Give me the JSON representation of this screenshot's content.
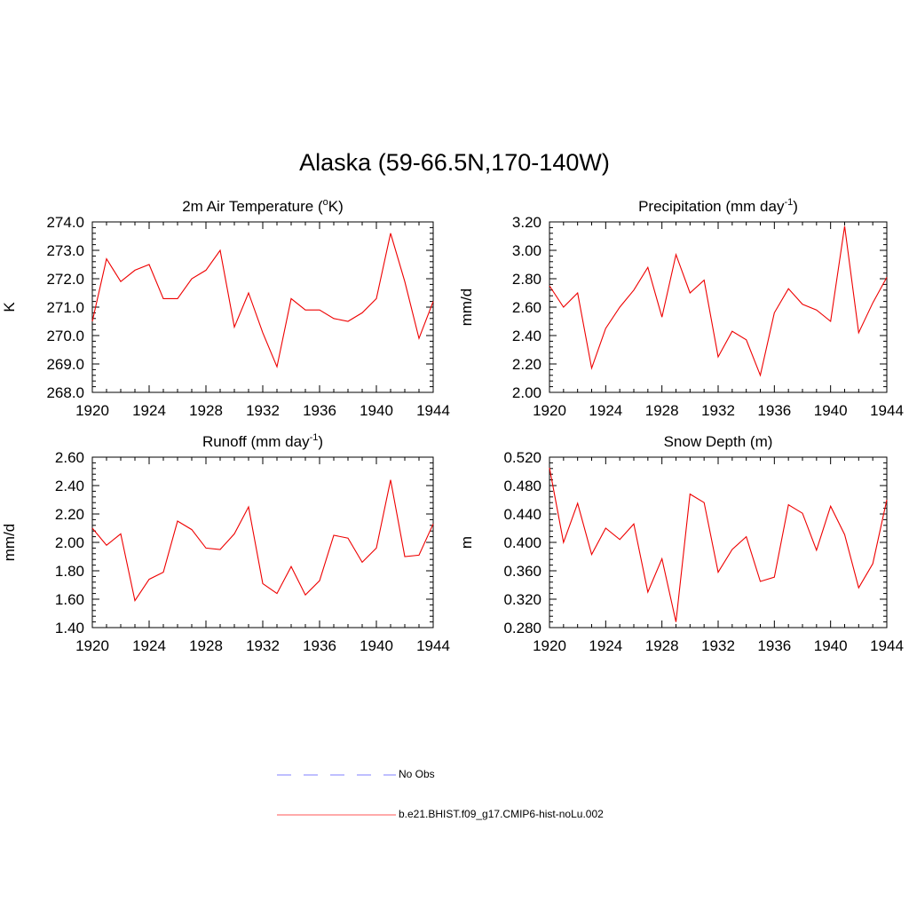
{
  "title": "Alaska (59-66.5N,170-140W)",
  "colors": {
    "model_line": "#ee0000",
    "obs_line": "#9999ff",
    "axis": "#000000"
  },
  "legend": [
    {
      "label": "No Obs",
      "style": "dashed",
      "color": "#9999ff"
    },
    {
      "label": "b.e21.BHIST.f09_g17.CMIP6-hist-noLu.002",
      "style": "solid",
      "color": "#ee0000"
    }
  ],
  "chart_data": [
    {
      "type": "line",
      "title": "2m Air Temperature (",
      "title_sup": "o",
      "title_tail": "K)",
      "ylabel": "K",
      "xlim": [
        1920,
        1944
      ],
      "ylim": [
        268.0,
        274.0
      ],
      "xticks": [
        1920,
        1924,
        1928,
        1932,
        1936,
        1940,
        1944
      ],
      "yticks": [
        "268.0",
        "269.0",
        "270.0",
        "271.0",
        "272.0",
        "273.0",
        "274.0"
      ],
      "series": [
        {
          "x": [
            1920,
            1921,
            1922,
            1923,
            1924,
            1925,
            1926,
            1927,
            1928,
            1929,
            1930,
            1931,
            1932,
            1933,
            1934,
            1935,
            1936,
            1937,
            1938,
            1939,
            1940,
            1941,
            1942,
            1943,
            1944
          ],
          "values": [
            270.5,
            272.7,
            271.9,
            272.3,
            272.5,
            271.3,
            271.3,
            272.0,
            272.3,
            273.0,
            270.3,
            271.5,
            270.1,
            268.9,
            271.3,
            270.9,
            270.9,
            270.6,
            270.5,
            270.8,
            271.3,
            273.6,
            271.9,
            269.9,
            271.2
          ]
        }
      ]
    },
    {
      "type": "line",
      "title": "Precipitation (mm day",
      "title_sup": "-1",
      "title_tail": ")",
      "ylabel": "mm/d",
      "xlim": [
        1920,
        1944
      ],
      "ylim": [
        2.0,
        3.2
      ],
      "xticks": [
        1920,
        1924,
        1928,
        1932,
        1936,
        1940,
        1944
      ],
      "yticks": [
        "2.00",
        "2.20",
        "2.40",
        "2.60",
        "2.80",
        "3.00",
        "3.20"
      ],
      "series": [
        {
          "x": [
            1920,
            1921,
            1922,
            1923,
            1924,
            1925,
            1926,
            1927,
            1928,
            1929,
            1930,
            1931,
            1932,
            1933,
            1934,
            1935,
            1936,
            1937,
            1938,
            1939,
            1940,
            1941,
            1942,
            1943,
            1944
          ],
          "values": [
            2.75,
            2.6,
            2.7,
            2.17,
            2.45,
            2.6,
            2.72,
            2.88,
            2.53,
            2.97,
            2.7,
            2.79,
            2.25,
            2.43,
            2.37,
            2.12,
            2.56,
            2.73,
            2.62,
            2.58,
            2.5,
            3.17,
            2.42,
            2.63,
            2.81
          ]
        }
      ]
    },
    {
      "type": "line",
      "title": "Runoff (mm day",
      "title_sup": "-1",
      "title_tail": ")",
      "ylabel": "mm/d",
      "xlim": [
        1920,
        1944
      ],
      "ylim": [
        1.4,
        2.6
      ],
      "xticks": [
        1920,
        1924,
        1928,
        1932,
        1936,
        1940,
        1944
      ],
      "yticks": [
        "1.40",
        "1.60",
        "1.80",
        "2.00",
        "2.20",
        "2.40",
        "2.60"
      ],
      "series": [
        {
          "x": [
            1920,
            1921,
            1922,
            1923,
            1924,
            1925,
            1926,
            1927,
            1928,
            1929,
            1930,
            1931,
            1932,
            1933,
            1934,
            1935,
            1936,
            1937,
            1938,
            1939,
            1940,
            1941,
            1942,
            1943,
            1944
          ],
          "values": [
            2.1,
            1.98,
            2.06,
            1.59,
            1.74,
            1.79,
            2.15,
            2.09,
            1.96,
            1.95,
            2.06,
            2.25,
            1.71,
            1.64,
            1.83,
            1.63,
            1.73,
            2.05,
            2.03,
            1.86,
            1.96,
            2.44,
            1.9,
            1.91,
            2.13
          ]
        }
      ]
    },
    {
      "type": "line",
      "title": "Snow Depth (m)",
      "title_sup": "",
      "title_tail": "",
      "ylabel": "m",
      "xlim": [
        1920,
        1944
      ],
      "ylim": [
        0.28,
        0.52
      ],
      "xticks": [
        1920,
        1924,
        1928,
        1932,
        1936,
        1940,
        1944
      ],
      "yticks": [
        "0.280",
        "0.320",
        "0.360",
        "0.400",
        "0.440",
        "0.480",
        "0.520"
      ],
      "series": [
        {
          "x": [
            1920,
            1921,
            1922,
            1923,
            1924,
            1925,
            1926,
            1927,
            1928,
            1929,
            1930,
            1931,
            1932,
            1933,
            1934,
            1935,
            1936,
            1937,
            1938,
            1939,
            1940,
            1941,
            1942,
            1943,
            1944
          ],
          "values": [
            0.505,
            0.4,
            0.455,
            0.383,
            0.42,
            0.404,
            0.426,
            0.33,
            0.377,
            0.288,
            0.468,
            0.456,
            0.358,
            0.39,
            0.408,
            0.345,
            0.351,
            0.453,
            0.441,
            0.389,
            0.451,
            0.411,
            0.336,
            0.37,
            0.46
          ]
        }
      ]
    }
  ]
}
